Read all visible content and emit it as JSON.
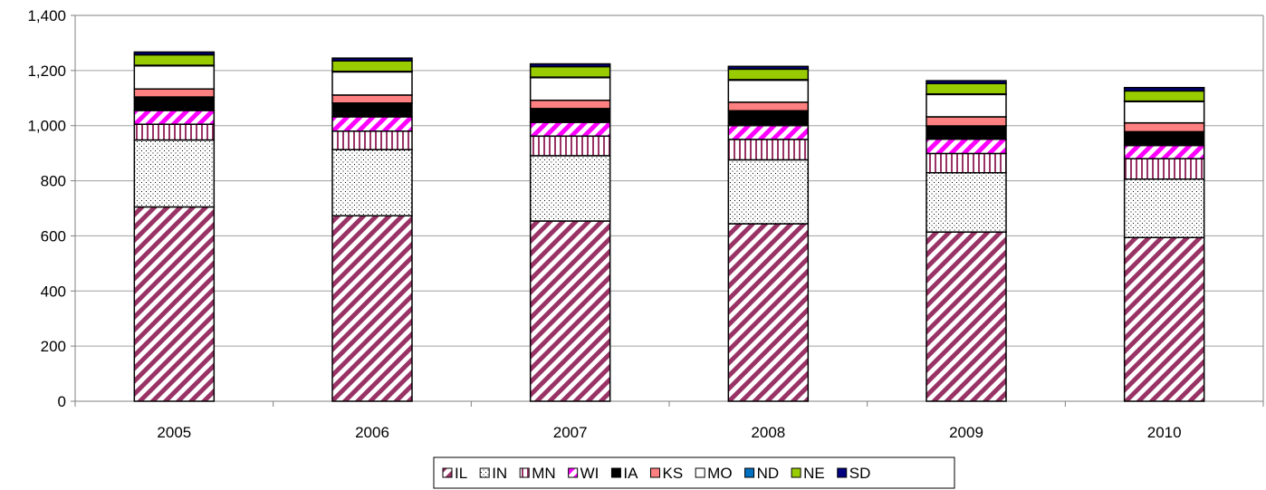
{
  "chart_data": {
    "type": "bar",
    "stacked": true,
    "title": "",
    "xlabel": "",
    "ylabel": "",
    "ylim": [
      0,
      1400
    ],
    "yticks": [
      0,
      200,
      400,
      600,
      800,
      1000,
      1200,
      1400
    ],
    "ytick_labels": [
      "0",
      "200",
      "400",
      "600",
      "800",
      "1,000",
      "1,200",
      "1,400"
    ],
    "categories": [
      "2005",
      "2006",
      "2007",
      "2008",
      "2009",
      "2010"
    ],
    "grid": true,
    "legend_position": "bottom",
    "series": [
      {
        "name": "IL",
        "color": "#993366",
        "pattern": "diagonal-stripes",
        "values": [
          705,
          673,
          654,
          644,
          614,
          594
        ]
      },
      {
        "name": "IN",
        "color": "#ffffff",
        "pattern": "dots",
        "values": [
          243,
          240,
          237,
          232,
          215,
          212
        ]
      },
      {
        "name": "MN",
        "color": "#ffffff",
        "pattern": "vertical-stripes",
        "values": [
          57,
          67,
          71,
          74,
          70,
          74
        ]
      },
      {
        "name": "WI",
        "color": "#ff00ff",
        "pattern": "diagonal-stripes",
        "values": [
          50,
          52,
          50,
          50,
          52,
          48
        ]
      },
      {
        "name": "IA",
        "color": "#000000",
        "pattern": "solid",
        "values": [
          49,
          50,
          50,
          54,
          48,
          50
        ]
      },
      {
        "name": "KS",
        "color": "#ff8080",
        "pattern": "solid",
        "values": [
          29,
          29,
          30,
          31,
          33,
          32
        ]
      },
      {
        "name": "MO",
        "color": "#ffffff",
        "pattern": "solid",
        "values": [
          84,
          84,
          82,
          80,
          81,
          77
        ]
      },
      {
        "name": "ND",
        "color": "#0070c0",
        "pattern": "solid",
        "values": [
          2,
          2,
          2,
          2,
          2,
          2
        ]
      },
      {
        "name": "NE",
        "color": "#99cc00",
        "pattern": "solid",
        "values": [
          38,
          38,
          38,
          38,
          38,
          37
        ]
      },
      {
        "name": "SD",
        "color": "#000080",
        "pattern": "solid",
        "values": [
          10,
          10,
          10,
          10,
          10,
          12
        ]
      }
    ]
  }
}
